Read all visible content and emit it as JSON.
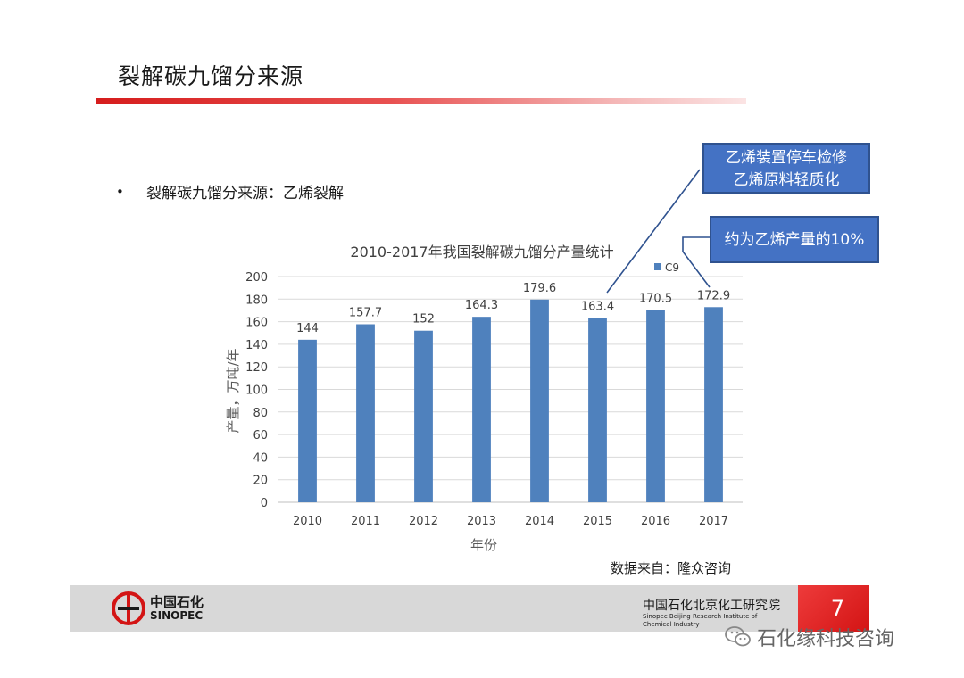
{
  "slide": {
    "title": "裂解碳九馏分来源",
    "bullet": "裂解碳九馏分来源：乙烯裂解",
    "source_note": "数据来自：隆众咨询",
    "callouts": [
      {
        "lines": [
          "乙烯装置停车检修",
          "乙烯原料轻质化"
        ]
      },
      {
        "lines": [
          "约为乙烯产量的10%"
        ]
      }
    ],
    "page_number": "7",
    "watermark": "石化缘科技咨询"
  },
  "footer": {
    "logo_cn": "中国石化",
    "logo_en": "SINOPEC",
    "institute_cn": "中国石化北京化工研究院",
    "institute_en": "Sinopec Beijing Research Institute of Chemical Industry"
  },
  "colors": {
    "bar": "#4f81bd",
    "title_bar": "#d61d1d",
    "callout": "#4472c4",
    "footer": "#d8d8d8",
    "footer_accent": "#e02020"
  },
  "chart_data": {
    "type": "bar",
    "title": "2010-2017年我国裂解碳九馏分产量统计",
    "xlabel": "年份",
    "ylabel": "产量，万吨/年",
    "categories": [
      "2010",
      "2011",
      "2012",
      "2013",
      "2014",
      "2015",
      "2016",
      "2017"
    ],
    "series": [
      {
        "name": "C9",
        "values": [
          144,
          157.7,
          152,
          164.3,
          179.6,
          163.4,
          170.5,
          172.9
        ]
      }
    ],
    "data_labels": [
      "144",
      "157.7",
      "152",
      "164.3",
      "179.6",
      "163.4",
      "170.5",
      "172.9"
    ],
    "ylim": [
      0,
      200
    ],
    "yticks": [
      "0",
      "20",
      "40",
      "60",
      "80",
      "100",
      "120",
      "140",
      "160",
      "180",
      "200"
    ],
    "grid": true,
    "legend_position": "top-right"
  }
}
